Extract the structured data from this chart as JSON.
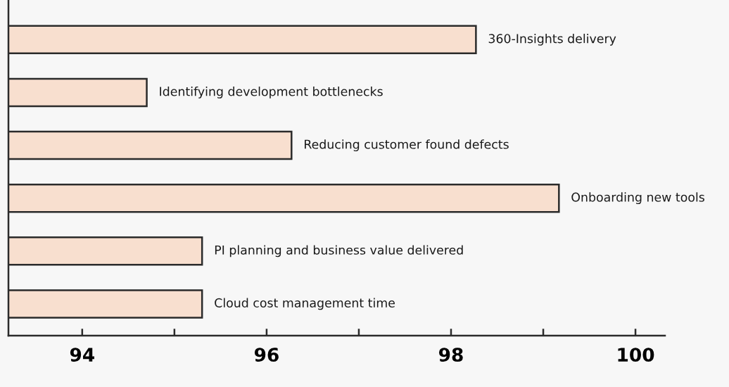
{
  "chart_data": {
    "type": "bar",
    "orientation": "horizontal",
    "categories": [
      "360-Insights delivery",
      "Identifying development bottlenecks",
      "Reducing customer found defects",
      "Onboarding new tools",
      "PI planning and business value delivered",
      "Cloud cost management time"
    ],
    "values": [
      98.27,
      94.7,
      96.27,
      99.17,
      95.3,
      95.3
    ],
    "color": "#f8dfcf",
    "xlim": [
      93.2,
      100.32
    ],
    "xticks": [
      94,
      {
        "value": 95,
        "label": null
      },
      96,
      {
        "value": 97,
        "label": null
      },
      98,
      {
        "value": 99,
        "label": null
      },
      100
    ],
    "grid": false
  }
}
